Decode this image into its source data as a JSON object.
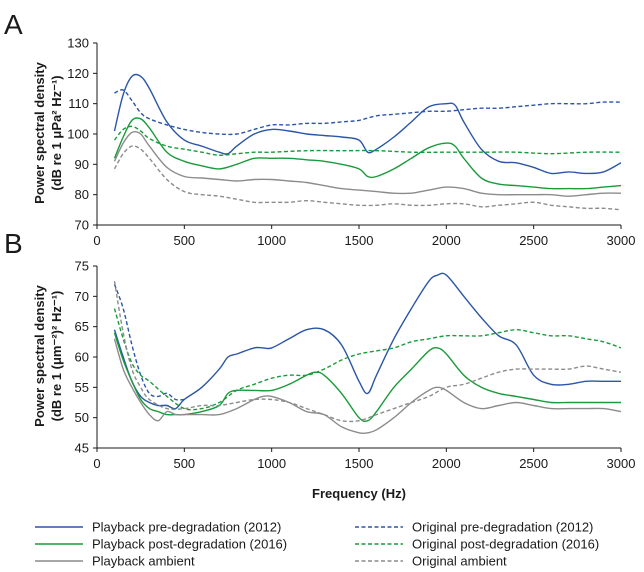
{
  "chart_data": [
    {
      "panel": "A",
      "type": "line",
      "xlabel": "",
      "ylabel_line1": "Power spectral density",
      "ylabel_line2": "(dB re 1 μPa² Hz⁻¹)",
      "xlim": [
        0,
        3000
      ],
      "ylim": [
        70,
        130
      ],
      "xticks": [
        0,
        500,
        1000,
        1500,
        2000,
        2500,
        3000
      ],
      "yticks": [
        70,
        80,
        90,
        100,
        110,
        120,
        130
      ],
      "grid": false,
      "series": [
        {
          "name": "Playback pre-degradation (2012)",
          "color": "#2b55a6",
          "dash": false,
          "x": [
            100,
            150,
            200,
            250,
            300,
            400,
            500,
            600,
            700,
            750,
            800,
            900,
            1000,
            1100,
            1200,
            1300,
            1400,
            1500,
            1550,
            1600,
            1700,
            1800,
            1900,
            2000,
            2050,
            2100,
            2200,
            2300,
            2400,
            2500,
            2600,
            2700,
            2800,
            2900,
            3000
          ],
          "y": [
            101,
            113,
            119,
            119,
            115,
            104,
            98,
            96,
            94,
            93.5,
            96,
            100,
            101.5,
            101,
            100,
            99.5,
            99,
            98,
            94,
            95,
            99,
            104,
            109,
            110,
            109.5,
            104,
            95,
            91,
            90.5,
            89,
            87,
            87.5,
            87,
            87.5,
            90.5
          ]
        },
        {
          "name": "Original pre-degradation (2012)",
          "color": "#2b55a6",
          "dash": true,
          "x": [
            100,
            150,
            200,
            250,
            300,
            400,
            500,
            600,
            700,
            800,
            900,
            1000,
            1100,
            1200,
            1300,
            1400,
            1500,
            1600,
            1700,
            1800,
            1900,
            2000,
            2100,
            2200,
            2300,
            2400,
            2500,
            2600,
            2700,
            2800,
            2900,
            3000
          ],
          "y": [
            113.5,
            114.5,
            111,
            107,
            105,
            103,
            101.5,
            100.5,
            100,
            100,
            101.5,
            103,
            103,
            103.5,
            103.5,
            104,
            104.5,
            106,
            106.5,
            107,
            107.5,
            107.5,
            108,
            108.5,
            108.5,
            109,
            109.5,
            110,
            110,
            110,
            110.5,
            110.5
          ]
        },
        {
          "name": "Playback post-degradation (2016)",
          "color": "#1a9a3a",
          "dash": false,
          "x": [
            100,
            150,
            200,
            250,
            300,
            400,
            500,
            600,
            700,
            800,
            900,
            1000,
            1100,
            1200,
            1300,
            1400,
            1500,
            1550,
            1600,
            1700,
            1800,
            1900,
            2000,
            2050,
            2100,
            2200,
            2300,
            2400,
            2500,
            2600,
            2700,
            2800,
            2900,
            3000
          ],
          "y": [
            92,
            99,
            104.5,
            105,
            102,
            94,
            91,
            89.5,
            88.5,
            90,
            92,
            92,
            92,
            91.5,
            91,
            90,
            88.5,
            86,
            86,
            88.5,
            92,
            95.5,
            97,
            96,
            92,
            85.5,
            83.5,
            83,
            82.5,
            82,
            82,
            82,
            82.5,
            83
          ]
        },
        {
          "name": "Original post-degradation (2016)",
          "color": "#1a9a3a",
          "dash": true,
          "x": [
            100,
            150,
            200,
            250,
            300,
            400,
            500,
            600,
            700,
            800,
            900,
            1000,
            1200,
            1400,
            1600,
            1800,
            2000,
            2200,
            2400,
            2600,
            2800,
            3000
          ],
          "y": [
            98,
            101.5,
            102.5,
            101,
            98.5,
            96,
            95,
            94,
            93,
            93.5,
            94,
            94,
            94.5,
            94.5,
            94.5,
            94,
            94,
            94,
            94,
            93.5,
            94,
            94
          ]
        },
        {
          "name": "Playback ambient",
          "color": "#8c8c8c",
          "dash": false,
          "x": [
            100,
            150,
            200,
            250,
            300,
            400,
            500,
            600,
            700,
            800,
            900,
            1000,
            1100,
            1200,
            1300,
            1400,
            1500,
            1600,
            1700,
            1800,
            1900,
            2000,
            2100,
            2200,
            2300,
            2400,
            2500,
            2600,
            2700,
            2800,
            2900,
            3000
          ],
          "y": [
            91,
            97,
            100.5,
            100,
            96,
            89,
            86,
            85.5,
            85,
            84.5,
            85,
            85,
            84.5,
            84,
            83,
            82,
            81.5,
            81,
            80.5,
            80.5,
            81.5,
            82.5,
            82,
            80.5,
            80,
            80,
            80,
            80,
            79.5,
            80,
            80.5,
            80.5
          ]
        },
        {
          "name": "Original ambient",
          "color": "#8c8c8c",
          "dash": true,
          "x": [
            100,
            150,
            200,
            250,
            300,
            400,
            500,
            600,
            700,
            800,
            900,
            1000,
            1100,
            1200,
            1300,
            1400,
            1500,
            1600,
            1700,
            1800,
            1900,
            2000,
            2100,
            2200,
            2300,
            2400,
            2500,
            2600,
            2700,
            2800,
            2900,
            3000
          ],
          "y": [
            88.5,
            93.5,
            96,
            95,
            92,
            85,
            81,
            80,
            79.5,
            78.5,
            77.5,
            77.5,
            77.5,
            78,
            77.5,
            77,
            76.5,
            76.5,
            77,
            76.5,
            76.5,
            77,
            77,
            76,
            76.5,
            77,
            77.5,
            76.5,
            76,
            75.5,
            75.5,
            75
          ]
        }
      ]
    },
    {
      "panel": "B",
      "type": "line",
      "xlabel": "Frequency (Hz)",
      "ylabel_line1": "Power spectral density",
      "ylabel_line2": "(dB re 1 (μm⁻²)² Hz⁻¹)",
      "xlim": [
        0,
        3000
      ],
      "ylim": [
        45,
        75
      ],
      "xticks": [
        0,
        500,
        1000,
        1500,
        2000,
        2500,
        3000
      ],
      "yticks": [
        45,
        50,
        55,
        60,
        65,
        70,
        75
      ],
      "grid": false,
      "series": [
        {
          "name": "Playback pre-degradation (2012)",
          "color": "#2b55a6",
          "dash": false,
          "x": [
            100,
            150,
            200,
            250,
            300,
            350,
            400,
            450,
            500,
            600,
            700,
            750,
            800,
            900,
            950,
            1000,
            1100,
            1200,
            1300,
            1400,
            1500,
            1550,
            1600,
            1700,
            1800,
            1900,
            1950,
            2000,
            2100,
            2200,
            2300,
            2400,
            2500,
            2600,
            2700,
            2800,
            2900,
            3000
          ],
          "y": [
            64.5,
            60,
            56,
            53.5,
            52.5,
            52,
            52,
            51.5,
            53,
            55,
            58,
            60,
            60.5,
            61.5,
            61.5,
            61.5,
            63,
            64.5,
            64.5,
            62,
            56,
            54,
            57,
            63,
            68,
            72.5,
            73.5,
            73.5,
            70,
            66.5,
            63.5,
            62,
            57,
            55.5,
            55.5,
            56,
            56,
            56
          ]
        },
        {
          "name": "Original pre-degradation (2012)",
          "color": "#2b55a6",
          "dash": true,
          "x": [
            100,
            150,
            200,
            250,
            300,
            350,
            400,
            450,
            500
          ],
          "y": [
            72,
            68,
            62,
            57,
            54,
            53.5,
            54,
            53,
            53
          ]
        },
        {
          "name": "Playback post-degradation (2016)",
          "color": "#1a9a3a",
          "dash": false,
          "x": [
            100,
            150,
            200,
            250,
            300,
            350,
            400,
            450,
            500,
            600,
            700,
            750,
            800,
            900,
            1000,
            1100,
            1200,
            1250,
            1300,
            1400,
            1500,
            1550,
            1600,
            1700,
            1800,
            1900,
            1950,
            2000,
            2100,
            2200,
            2300,
            2400,
            2500,
            2600,
            2700,
            2800,
            2900,
            3000
          ],
          "y": [
            64,
            59.5,
            56,
            53,
            51.5,
            51,
            50.5,
            50.5,
            50.5,
            51,
            52,
            54,
            54.5,
            54.5,
            54.5,
            55.5,
            57,
            57.5,
            57,
            54,
            50,
            49.5,
            51,
            55,
            58,
            61,
            61.5,
            60.5,
            57,
            55,
            54,
            53.5,
            53,
            52.5,
            52.5,
            52.5,
            52.5,
            52.5
          ]
        },
        {
          "name": "Original post-degradation (2016)",
          "color": "#1a9a3a",
          "dash": true,
          "x": [
            100,
            150,
            200,
            250,
            300,
            400,
            500,
            600,
            700,
            800,
            900,
            1000,
            1100,
            1200,
            1300,
            1400,
            1500,
            1600,
            1700,
            1800,
            1900,
            2000,
            2100,
            2200,
            2300,
            2400,
            2500,
            2600,
            2700,
            2800,
            2900,
            3000
          ],
          "y": [
            68,
            63,
            59,
            57,
            56,
            53.5,
            51.5,
            51.5,
            52.5,
            54.5,
            55.5,
            56.5,
            57,
            57,
            58,
            59.5,
            60.5,
            61,
            61.5,
            62.5,
            63,
            63.5,
            63.5,
            63.5,
            64,
            64.5,
            64,
            63.5,
            63.5,
            63,
            62.5,
            61.5
          ]
        },
        {
          "name": "Playback ambient",
          "color": "#8c8c8c",
          "dash": false,
          "x": [
            100,
            150,
            200,
            250,
            300,
            350,
            400,
            450,
            500,
            600,
            700,
            800,
            900,
            950,
            1000,
            1100,
            1200,
            1300,
            1400,
            1500,
            1550,
            1600,
            1700,
            1800,
            1900,
            1950,
            2000,
            2100,
            2200,
            2300,
            2400,
            2500,
            2600,
            2700,
            2800,
            2900,
            3000
          ],
          "y": [
            63,
            58,
            55,
            52.5,
            50.5,
            49.5,
            51,
            50.5,
            50.5,
            50.5,
            50.5,
            51.5,
            53,
            53.5,
            53.5,
            52.5,
            51,
            50.5,
            48.5,
            47.5,
            47.5,
            48,
            50,
            52.5,
            54.5,
            55,
            54.5,
            52.5,
            51.5,
            52,
            52.5,
            52,
            51.5,
            51.5,
            51.5,
            51.5,
            51
          ]
        },
        {
          "name": "Original ambient",
          "color": "#8c8c8c",
          "dash": true,
          "x": [
            100,
            150,
            200,
            250,
            300,
            400,
            500,
            600,
            700,
            800,
            900,
            1000,
            1100,
            1200,
            1300,
            1400,
            1500,
            1600,
            1700,
            1800,
            1900,
            2000,
            2100,
            2200,
            2300,
            2400,
            2500,
            2600,
            2700,
            2800,
            2900,
            3000
          ],
          "y": [
            72.5,
            64,
            58,
            55,
            53,
            51.5,
            51.5,
            52,
            52,
            52.5,
            53,
            53,
            52.5,
            51.5,
            50.5,
            49.5,
            49.5,
            50.5,
            51.5,
            52.5,
            53.5,
            55,
            55.5,
            56.5,
            57.5,
            58,
            58,
            58,
            58,
            58.5,
            58,
            57.5
          ]
        }
      ]
    }
  ],
  "panels": {
    "A": {
      "letter": "A"
    },
    "B": {
      "letter": "B"
    }
  },
  "legend": {
    "placement": "bottom",
    "items": [
      {
        "label": "Playback pre-degradation (2012)",
        "color": "#2b55a6",
        "dash": false
      },
      {
        "label": "Original pre-degradation (2012)",
        "color": "#2b55a6",
        "dash": true
      },
      {
        "label": "Playback post-degradation (2016)",
        "color": "#1a9a3a",
        "dash": false
      },
      {
        "label": "Original post-degradation (2016)",
        "color": "#1a9a3a",
        "dash": true
      },
      {
        "label": "Playback ambient",
        "color": "#8c8c8c",
        "dash": false
      },
      {
        "label": "Original ambient",
        "color": "#8c8c8c",
        "dash": true
      }
    ]
  }
}
